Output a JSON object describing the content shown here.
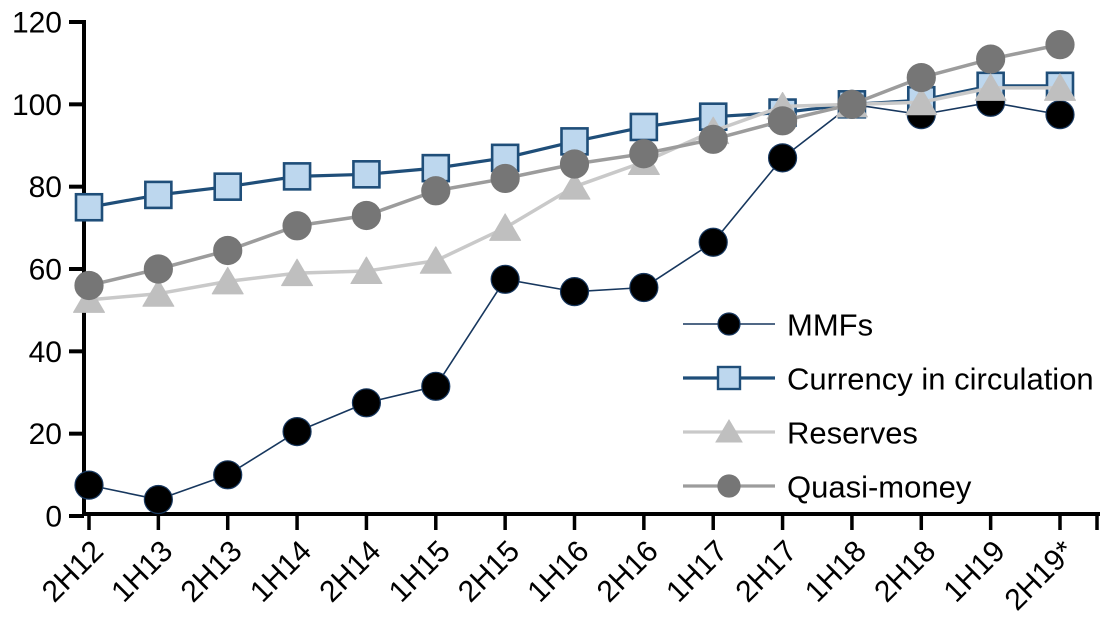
{
  "chart_data": {
    "type": "line",
    "title": "",
    "categories": [
      "2H12",
      "1H13",
      "2H13",
      "1H14",
      "2H14",
      "1H15",
      "2H15",
      "1H16",
      "2H16",
      "1H17",
      "2H17",
      "1H18",
      "2H18",
      "1H19",
      "2H19*"
    ],
    "series": [
      {
        "name": "MMFs",
        "marker": "circle",
        "line_color": "#17375E",
        "line_width": 1.6,
        "marker_fill": "#000000",
        "marker_stroke": "#17375E",
        "values": [
          7.5,
          4,
          10,
          20.5,
          27.5,
          31.5,
          57.5,
          54.5,
          55.5,
          66.5,
          87,
          100,
          97.5,
          100.5,
          97.5
        ]
      },
      {
        "name": "Currency in circulation",
        "marker": "square",
        "line_color": "#1F4E79",
        "line_width": 3.2,
        "marker_fill": "#BDD7EE",
        "marker_stroke": "#1F4E79",
        "values": [
          75,
          78,
          80,
          82.5,
          83,
          84.5,
          87,
          91,
          94.5,
          97,
          98,
          100,
          101,
          104.5,
          104.5
        ]
      },
      {
        "name": "Reserves",
        "marker": "triangle",
        "line_color": "#C9C9C9",
        "line_width": 3.5,
        "marker_fill": "#BFBFBF",
        "marker_stroke": "#BFBFBF",
        "values": [
          52.5,
          54,
          57,
          59,
          59.5,
          62,
          70,
          80,
          86,
          93.5,
          99.5,
          100,
          100.5,
          104,
          104
        ]
      },
      {
        "name": "Quasi-money",
        "marker": "circle",
        "line_color": "#9C9C9C",
        "line_width": 3.5,
        "marker_fill": "#767676",
        "marker_stroke": "#767676",
        "values": [
          56,
          60,
          64.5,
          70.5,
          73,
          79,
          82,
          85.5,
          88,
          91.5,
          96,
          100,
          106.5,
          111,
          114.5
        ]
      }
    ],
    "y_axis": {
      "min": 0,
      "max": 120,
      "step": 20,
      "tick_labels": [
        "0",
        "20",
        "40",
        "60",
        "80",
        "100",
        "120"
      ]
    },
    "x_axis": {
      "label_rotation_deg": 45
    },
    "legend": {
      "position": "inside-right",
      "items": [
        "MMFs",
        "Currency in circulation",
        "Reserves",
        "Quasi-money"
      ]
    },
    "grid": false,
    "index_base_note": "1H18",
    "axis_color": "#000000",
    "background_color": "#FFFFFF"
  }
}
